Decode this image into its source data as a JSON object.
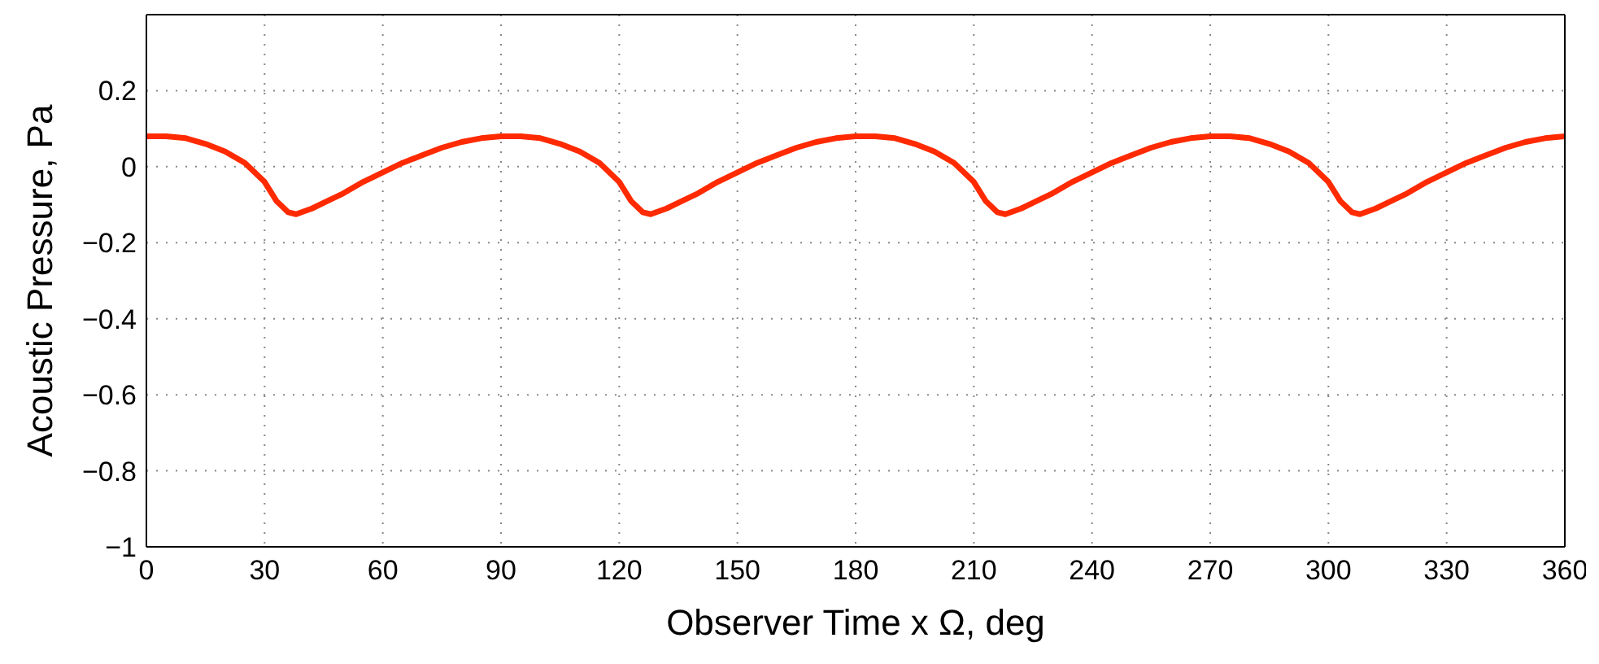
{
  "chart_data": {
    "type": "line",
    "xlabel": "Observer Time x Ω, deg",
    "ylabel": "Acoustic Pressure, Pa",
    "x": [
      0,
      5,
      10,
      15,
      20,
      25,
      30,
      33,
      36,
      38,
      42,
      46,
      50,
      55,
      60,
      65,
      70,
      75,
      80,
      85,
      90,
      95,
      100,
      105,
      110,
      115,
      120,
      123,
      126,
      128,
      132,
      136,
      140,
      145,
      150,
      155,
      160,
      165,
      170,
      175,
      180,
      185,
      190,
      195,
      200,
      205,
      210,
      213,
      216,
      218,
      222,
      226,
      230,
      235,
      240,
      245,
      250,
      255,
      260,
      265,
      270,
      275,
      280,
      285,
      290,
      295,
      300,
      303,
      306,
      308,
      312,
      316,
      320,
      325,
      330,
      335,
      340,
      345,
      350,
      355,
      360
    ],
    "series": [
      {
        "color": "#ff2a00",
        "values": [
          0.08,
          0.08,
          0.075,
          0.06,
          0.04,
          0.01,
          -0.04,
          -0.09,
          -0.12,
          -0.125,
          -0.11,
          -0.09,
          -0.07,
          -0.04,
          -0.015,
          0.01,
          0.03,
          0.05,
          0.065,
          0.075,
          0.08,
          0.08,
          0.075,
          0.06,
          0.04,
          0.01,
          -0.04,
          -0.09,
          -0.12,
          -0.125,
          -0.11,
          -0.09,
          -0.07,
          -0.04,
          -0.015,
          0.01,
          0.03,
          0.05,
          0.065,
          0.075,
          0.08,
          0.08,
          0.075,
          0.06,
          0.04,
          0.01,
          -0.04,
          -0.09,
          -0.12,
          -0.125,
          -0.11,
          -0.09,
          -0.07,
          -0.04,
          -0.015,
          0.01,
          0.03,
          0.05,
          0.065,
          0.075,
          0.08,
          0.08,
          0.075,
          0.06,
          0.04,
          0.01,
          -0.04,
          -0.09,
          -0.12,
          -0.125,
          -0.11,
          -0.09,
          -0.07,
          -0.04,
          -0.015,
          0.01,
          0.03,
          0.05,
          0.065,
          0.075,
          0.08
        ]
      }
    ],
    "xlim": [
      0,
      360
    ],
    "xticks": [
      0,
      30,
      60,
      90,
      120,
      150,
      180,
      210,
      240,
      270,
      300,
      330,
      360
    ],
    "ylim": [
      -1,
      0.4
    ],
    "yticks": [
      -1,
      -0.8,
      -0.6,
      -0.4,
      -0.2,
      0,
      0.2
    ],
    "grid": true,
    "marker": "none",
    "line_style": "solid",
    "legend": false
  }
}
